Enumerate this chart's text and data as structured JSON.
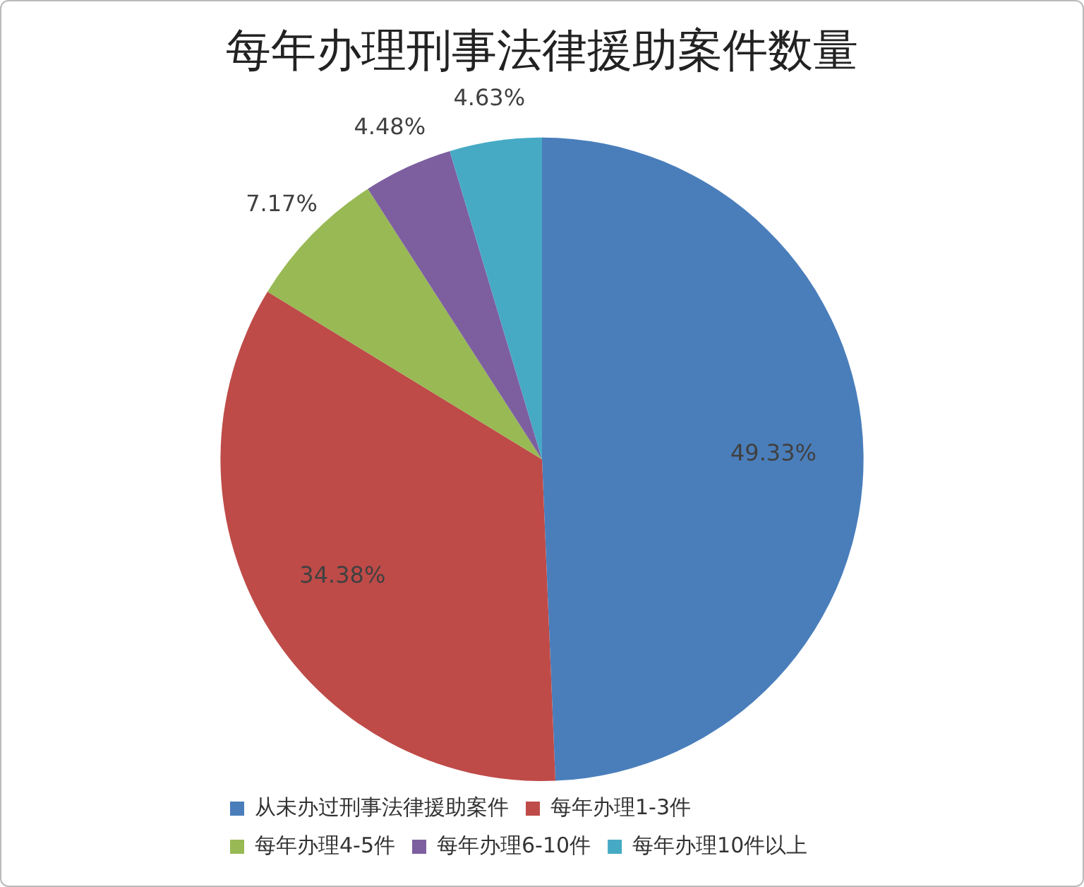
{
  "chart_data": {
    "type": "pie",
    "title": "每年办理刑事法律援助案件数量",
    "categories": [
      "从未办过刑事法律援助案件",
      "每年办理1-3件",
      "每年办理4-5件",
      "每年办理6-10件",
      "每年办理10件以上"
    ],
    "values": [
      49.33,
      34.38,
      7.17,
      4.48,
      4.63
    ],
    "colors": [
      "#4a7ebb",
      "#be4b48",
      "#98b954",
      "#7d5fa0",
      "#46aac5"
    ],
    "value_labels": [
      "49.33%",
      "34.38%",
      "7.17%",
      "4.48%",
      "4.63%"
    ],
    "legend": "bottom"
  }
}
